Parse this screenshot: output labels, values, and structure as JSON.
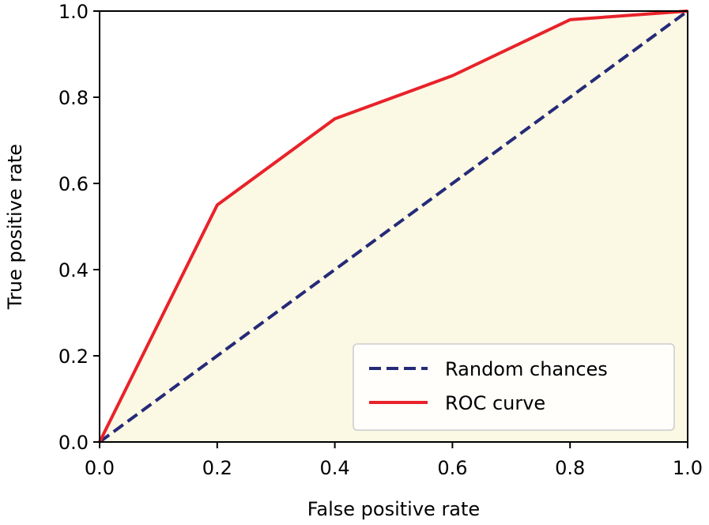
{
  "chart_data": {
    "type": "line",
    "xlabel": "False positive rate",
    "ylabel": "True positive rate",
    "xlim": [
      0.0,
      1.0
    ],
    "ylim": [
      0.0,
      1.0
    ],
    "x_ticks": [
      "0.0",
      "0.2",
      "0.4",
      "0.6",
      "0.8",
      "1.0"
    ],
    "y_ticks": [
      "0.0",
      "0.2",
      "0.4",
      "0.6",
      "0.8",
      "1.0"
    ],
    "grid": false,
    "legend_position": "bottom-right",
    "fill_under": "ROC curve",
    "fill_color": "#fbf8e4",
    "series": [
      {
        "name": "Random chances",
        "style": "dashed",
        "color": "#252a78",
        "x": [
          0.0,
          1.0
        ],
        "y": [
          0.0,
          1.0
        ]
      },
      {
        "name": "ROC curve",
        "style": "solid",
        "color": "#e8222a",
        "x": [
          0.0,
          0.2,
          0.4,
          0.6,
          0.8,
          1.0
        ],
        "y": [
          0.0,
          0.55,
          0.75,
          0.85,
          0.98,
          1.0
        ]
      }
    ]
  }
}
